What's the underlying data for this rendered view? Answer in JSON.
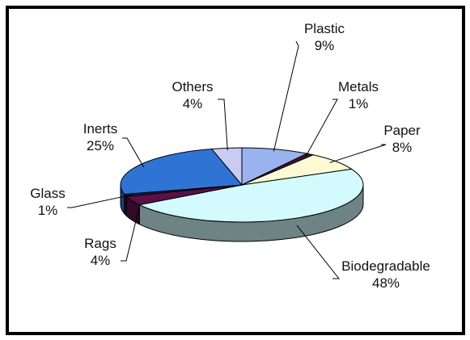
{
  "chart_data": {
    "type": "pie",
    "three_d": true,
    "legend": "none",
    "slices": [
      {
        "name": "Plastic",
        "value": 9,
        "label": "Plastic",
        "pct": "9%",
        "color": "#9ab2ee"
      },
      {
        "name": "Metals",
        "value": 1,
        "label": "Metals",
        "pct": "1%",
        "color": "#4a0e36"
      },
      {
        "name": "Paper",
        "value": 8,
        "label": "Paper",
        "pct": "8%",
        "color": "#fdfbd3"
      },
      {
        "name": "Biodegradable",
        "value": 48,
        "label": "Biodegradable",
        "pct": "48%",
        "color": "#d3fbfd"
      },
      {
        "name": "Rags",
        "value": 4,
        "label": "Rags",
        "pct": "4%",
        "color": "#5b1048"
      },
      {
        "name": "Glass",
        "value": 1,
        "label": "Glass",
        "pct": "1%",
        "color": "#11264a"
      },
      {
        "name": "Inerts",
        "value": 25,
        "label": "Inerts",
        "pct": "25%",
        "color": "#2f74d4"
      },
      {
        "name": "Others",
        "value": 4,
        "label": "Others",
        "pct": "4%",
        "color": "#c8ccf2"
      }
    ]
  }
}
